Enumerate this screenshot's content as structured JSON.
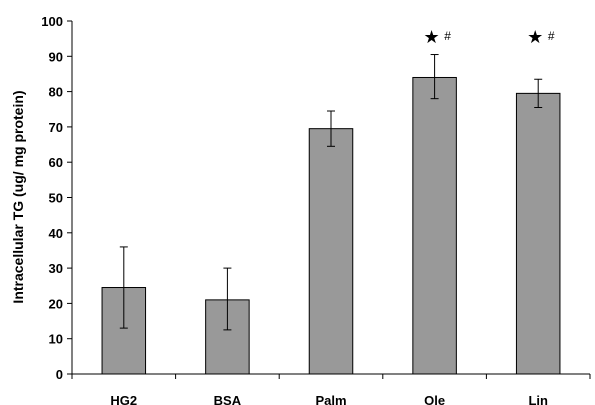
{
  "chart_data": {
    "type": "bar",
    "title": "",
    "xlabel": "",
    "ylabel": "Intracellular TG (ug/ mg protein)",
    "ylim": [
      0,
      100
    ],
    "yticks": [
      0,
      10,
      20,
      30,
      40,
      50,
      60,
      70,
      80,
      90,
      100
    ],
    "categories": [
      "HG2",
      "BSA",
      "Palm",
      "Ole",
      "Lin"
    ],
    "values": [
      24.5,
      21,
      69.5,
      84,
      79.5
    ],
    "error_upper": [
      36,
      30,
      74.5,
      90.5,
      83.5
    ],
    "error_lower": [
      13,
      12.5,
      64.5,
      78,
      75.5
    ],
    "bar_color": "#999999",
    "grid": false,
    "legend": "none",
    "annotations": [
      {
        "category": "Ole",
        "star": "★",
        "hash": "#"
      },
      {
        "category": "Lin",
        "star": "★",
        "hash": "#"
      }
    ]
  }
}
